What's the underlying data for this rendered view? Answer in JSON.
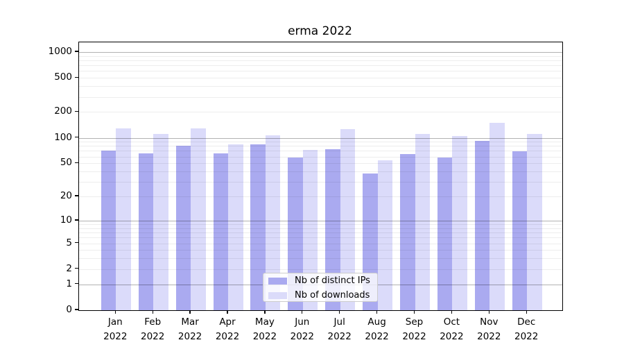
{
  "title": "erma 2022",
  "chart_data": {
    "type": "bar",
    "title": "erma 2022",
    "categories": [
      "Jan 2022",
      "Feb 2022",
      "Mar 2022",
      "Apr 2022",
      "May 2022",
      "Jun 2022",
      "Jul 2022",
      "Aug 2022",
      "Sep 2022",
      "Oct 2022",
      "Nov 2022",
      "Dec 2022"
    ],
    "x_tick_line1": [
      "Jan",
      "Feb",
      "Mar",
      "Apr",
      "May",
      "Jun",
      "Jul",
      "Aug",
      "Sep",
      "Oct",
      "Nov",
      "Dec"
    ],
    "x_tick_line2": "2022",
    "series": [
      {
        "name": "Nb of distinct IPs",
        "color": "#aaaaf0",
        "values": [
          71,
          65,
          81,
          66,
          84,
          58,
          73,
          38,
          64,
          59,
          92,
          69
        ]
      },
      {
        "name": "Nb of downloads",
        "color": "#dbdbfa",
        "values": [
          128,
          111,
          130,
          84,
          106,
          72,
          127,
          54,
          111,
          104,
          150,
          110
        ]
      }
    ],
    "yscale": "log1p",
    "ylim": [
      0,
      1300
    ],
    "yticks_labeled": [
      0,
      1,
      2,
      5,
      10,
      20,
      50,
      100,
      200,
      500,
      1000
    ],
    "yticks_major_grid": [
      1,
      10,
      100,
      1000
    ],
    "yticks_minor_grid": [
      2,
      3,
      4,
      5,
      6,
      7,
      8,
      9,
      20,
      30,
      40,
      50,
      60,
      70,
      80,
      90,
      200,
      300,
      400,
      500,
      600,
      700,
      800,
      900
    ],
    "grid": true,
    "legend_position": "lower center",
    "colors": {
      "major_grid": "rgba(0,0,0,0.30)",
      "minor_grid": "rgba(0,0,0,0.07)",
      "spine": "#000000"
    }
  }
}
